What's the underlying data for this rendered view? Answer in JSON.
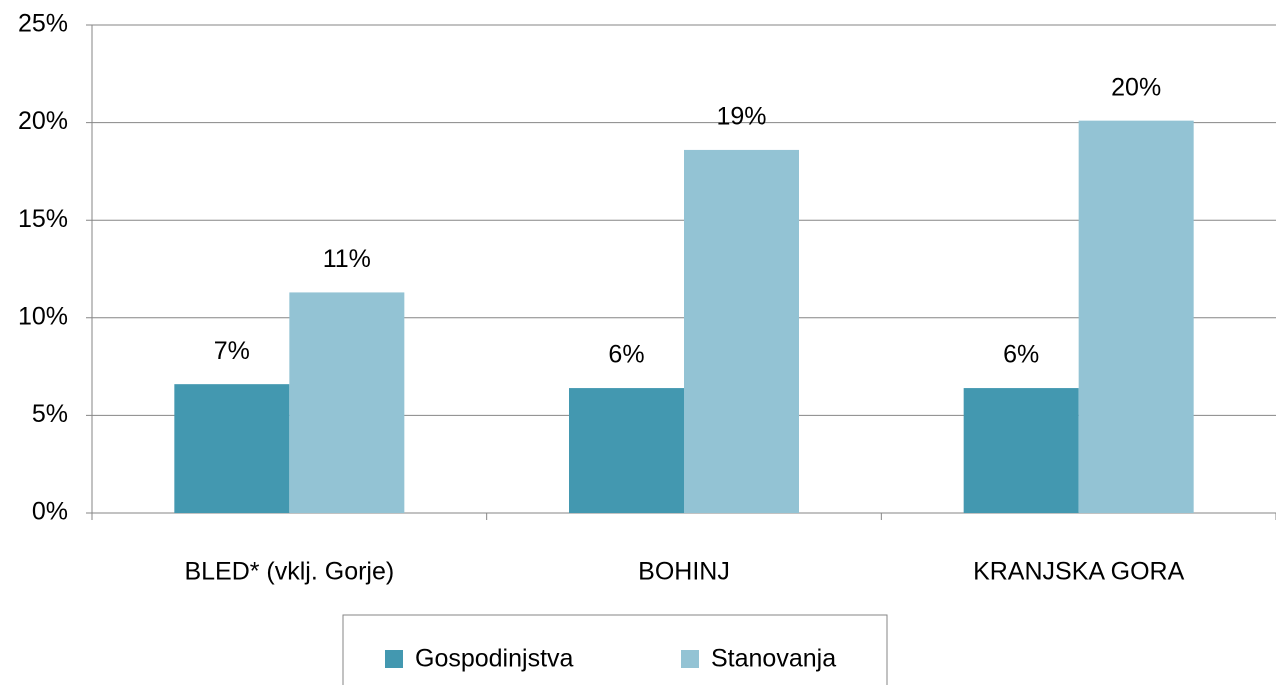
{
  "chart_data": {
    "type": "bar",
    "categories": [
      "BLED* (vklj. Gorje)",
      "BOHINJ",
      "KRANJSKA GORA"
    ],
    "series": [
      {
        "name": "Gospodinjstva",
        "color": "#4398b0",
        "values": [
          6.6,
          6.4,
          6.4
        ],
        "value_labels": [
          "7%",
          "6%",
          "6%"
        ]
      },
      {
        "name": "Stanovanja",
        "color": "#93c3d4",
        "values": [
          11.3,
          18.6,
          20.1
        ],
        "value_labels": [
          "11%",
          "19%",
          "20%"
        ]
      }
    ],
    "ylim": [
      0,
      25
    ],
    "yticks": [
      {
        "value": 0,
        "label": "0%"
      },
      {
        "value": 5,
        "label": "5%"
      },
      {
        "value": 10,
        "label": "10%"
      },
      {
        "value": 15,
        "label": "15%"
      },
      {
        "value": 20,
        "label": "20%"
      },
      {
        "value": 25,
        "label": "25%"
      }
    ],
    "grid": true,
    "legend": "bottom"
  }
}
